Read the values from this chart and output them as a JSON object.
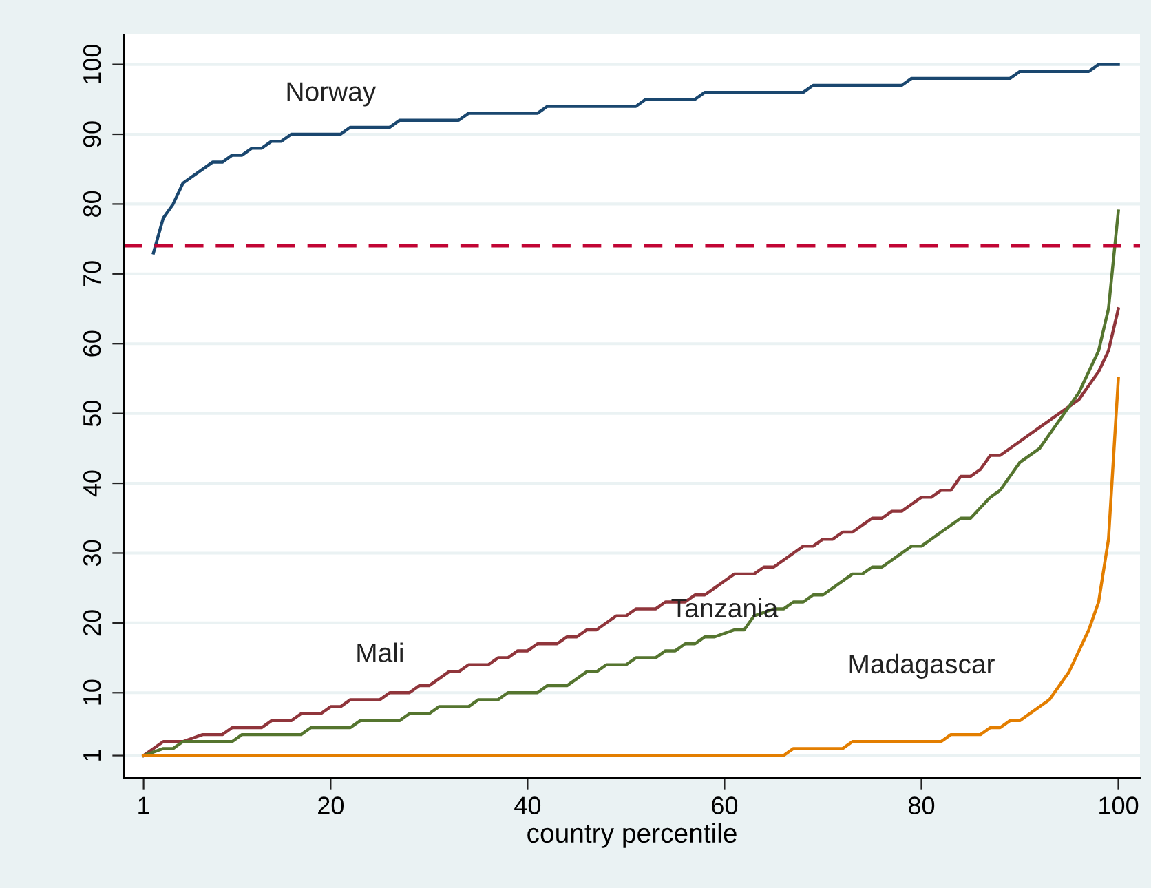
{
  "chart_data": {
    "type": "line",
    "xlabel": "country percentile",
    "xlim": [
      -1,
      102.2
    ],
    "xticks": [
      1,
      20,
      40,
      60,
      80,
      100
    ],
    "ylim": [
      -2.2,
      104.3
    ],
    "yticks": [
      1,
      10,
      20,
      30,
      40,
      50,
      60,
      70,
      80,
      90,
      100
    ],
    "grid": "y",
    "legend": false,
    "marker": "none",
    "line_style": "solid",
    "ref_lines": [
      {
        "axis": "y",
        "value": 74,
        "color": "#c10534",
        "line_style": "dashed"
      }
    ],
    "series": [
      {
        "name": "Norway",
        "color": "#1a476f",
        "x": [
          2,
          3,
          4,
          5,
          8,
          9,
          10,
          11,
          12,
          13,
          14,
          15,
          16,
          21,
          22,
          26,
          27,
          33,
          34,
          41,
          42,
          51,
          52,
          57,
          58,
          68,
          69,
          78,
          79,
          89,
          90,
          97,
          98,
          100
        ],
        "values": [
          73,
          78,
          80,
          83,
          86,
          86,
          87,
          87,
          88,
          88,
          89,
          89,
          90,
          90,
          91,
          91,
          92,
          92,
          93,
          93,
          94,
          94,
          95,
          95,
          96,
          96,
          97,
          97,
          98,
          98,
          99,
          99,
          100,
          100
        ]
      },
      {
        "name": "Mali",
        "color": "#90353b",
        "x": [
          1,
          3,
          5,
          7,
          9,
          10,
          13,
          14,
          16,
          17,
          19,
          20,
          21,
          22,
          25,
          26,
          28,
          29,
          30,
          32,
          33,
          34,
          36,
          37,
          38,
          39,
          40,
          41,
          43,
          44,
          45,
          46,
          47,
          49,
          50,
          51,
          53,
          54,
          56,
          57,
          58,
          59,
          60,
          61,
          63,
          64,
          65,
          66,
          67,
          68,
          69,
          70,
          71,
          72,
          73,
          74,
          75,
          76,
          77,
          78,
          79,
          80,
          81,
          82,
          83,
          84,
          85,
          86,
          87,
          88,
          90,
          92,
          94,
          96,
          97,
          98,
          99,
          100
        ],
        "values": [
          1,
          3,
          3,
          4,
          4,
          5,
          5,
          6,
          6,
          7,
          7,
          8,
          8,
          9,
          9,
          10,
          10,
          11,
          11,
          13,
          13,
          14,
          14,
          15,
          15,
          16,
          16,
          17,
          17,
          18,
          18,
          19,
          19,
          21,
          21,
          22,
          22,
          23,
          23,
          24,
          24,
          25,
          26,
          27,
          27,
          28,
          28,
          29,
          30,
          31,
          31,
          32,
          32,
          33,
          33,
          34,
          35,
          35,
          36,
          36,
          37,
          38,
          38,
          39,
          39,
          41,
          41,
          42,
          44,
          44,
          46,
          48,
          50,
          52,
          54,
          56,
          59,
          65
        ]
      },
      {
        "name": "Tanzania",
        "color": "#55752f",
        "x": [
          1,
          3,
          4,
          5,
          10,
          11,
          17,
          18,
          22,
          23,
          27,
          28,
          30,
          31,
          34,
          35,
          37,
          38,
          41,
          42,
          44,
          46,
          47,
          48,
          50,
          51,
          53,
          54,
          55,
          56,
          57,
          58,
          59,
          61,
          62,
          63,
          65,
          66,
          67,
          68,
          69,
          70,
          73,
          74,
          75,
          76,
          79,
          80,
          82,
          84,
          85,
          87,
          88,
          90,
          92,
          94,
          96,
          98,
          99,
          100
        ],
        "values": [
          1,
          2,
          2,
          3,
          3,
          4,
          4,
          5,
          5,
          6,
          6,
          7,
          7,
          8,
          8,
          9,
          9,
          10,
          10,
          11,
          11,
          13,
          13,
          14,
          14,
          15,
          15,
          16,
          16,
          17,
          17,
          18,
          18,
          19,
          19,
          21,
          22,
          22,
          23,
          23,
          24,
          24,
          27,
          27,
          28,
          28,
          31,
          31,
          33,
          35,
          35,
          38,
          39,
          43,
          45,
          49,
          53,
          59,
          65,
          79
        ]
      },
      {
        "name": "Madagascar",
        "color": "#e37e00",
        "x": [
          1,
          66,
          67,
          72,
          73,
          82,
          83,
          86,
          87,
          88,
          89,
          90,
          93,
          95,
          97,
          98,
          99,
          100
        ],
        "values": [
          1,
          1,
          2,
          2,
          3,
          3,
          4,
          4,
          5,
          5,
          6,
          6,
          9,
          13,
          19,
          23,
          32,
          55
        ]
      }
    ]
  }
}
